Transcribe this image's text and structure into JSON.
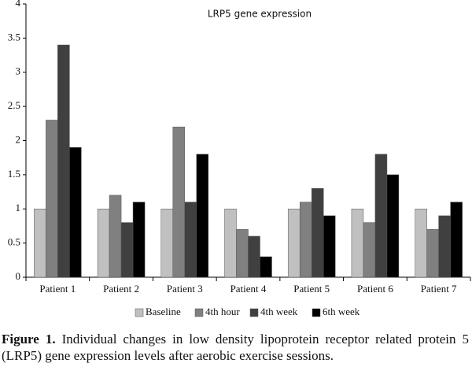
{
  "chart_data": {
    "type": "bar",
    "title": "LRP5 gene expression",
    "categories": [
      "Patient 1",
      "Patient 2",
      "Patient 3",
      "Patient 4",
      "Patient 5",
      "Patient 6",
      "Patient 7"
    ],
    "series": [
      {
        "name": "Baseline",
        "color": "#c0c0c0",
        "values": [
          1,
          1,
          1,
          1,
          1,
          1,
          1
        ]
      },
      {
        "name": "4th hour",
        "color": "#808080",
        "values": [
          2.3,
          1.2,
          2.2,
          0.7,
          1.1,
          0.8,
          0.7
        ]
      },
      {
        "name": "4th week",
        "color": "#404040",
        "values": [
          3.4,
          0.8,
          1.1,
          0.6,
          1.3,
          1.8,
          0.9
        ]
      },
      {
        "name": "6th week",
        "color": "#000000",
        "values": [
          1.9,
          1.1,
          1.8,
          0.3,
          0.9,
          1.5,
          1.1
        ]
      }
    ],
    "ylim": [
      0,
      4
    ],
    "yticks": [
      0,
      0.5,
      1,
      1.5,
      2,
      2.5,
      3,
      3.5,
      4
    ],
    "grid": false,
    "legend": "bottom"
  },
  "figure_caption": {
    "label": "Figure 1.",
    "text": "Individual changes in low density lipoprotein receptor related protein 5 (LRP5) gene expression levels after aerobic exercise sessions."
  }
}
